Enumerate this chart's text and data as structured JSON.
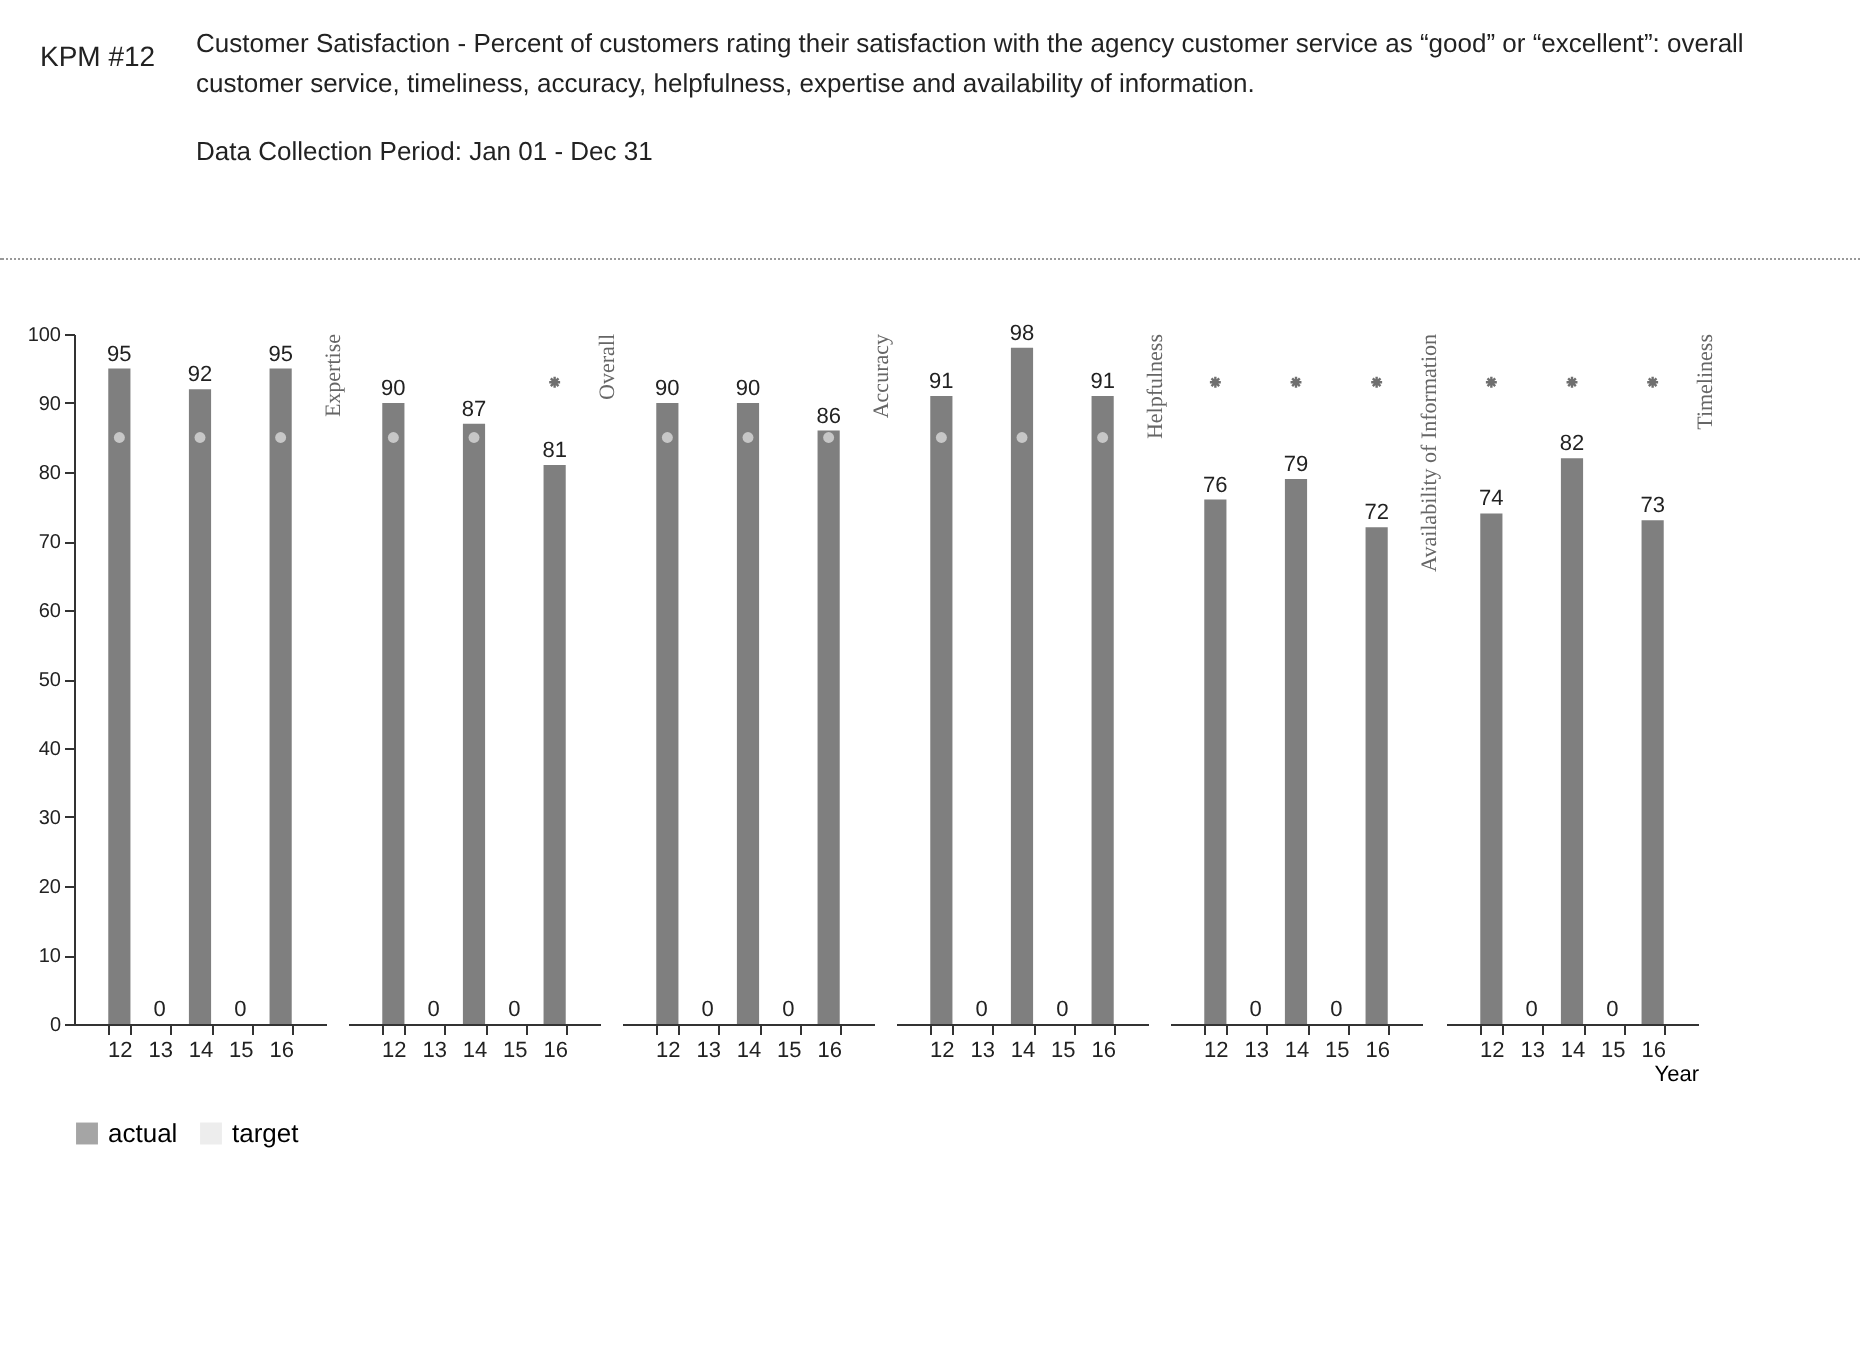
{
  "chart_data": [
    {
      "type": "other",
      "title": "KPM #12",
      "annotations": [
        "Customer Satisfaction - Percent of customers rating their satisfaction with the agency customer service as “good” or “excellent”: overall customer service, timeliness, accuracy, helpfulness, expertise and availability of information.",
        "Data Collection Period: Jan 01 - Dec 31"
      ]
    },
    {
      "type": "bar",
      "title": "Expertise",
      "categories": [
        "12",
        "13",
        "14",
        "15",
        "16"
      ],
      "ylim": [
        0,
        100
      ],
      "yticks": [
        0,
        10,
        20,
        30,
        40,
        50,
        60,
        70,
        80,
        90,
        100
      ],
      "legend": "bottom",
      "series": [
        {
          "name": "actual",
          "color": "#7f7f7f",
          "values": [
            95,
            0,
            92,
            0,
            95
          ],
          "value_labels": [
            "95",
            "0",
            "92",
            "0",
            "95"
          ]
        },
        {
          "name": "target",
          "type": "scatter",
          "marker": "circle",
          "color": "#e6e6e6",
          "values": [
            85,
            null,
            85,
            null,
            85
          ]
        },
        {
          "type": "scatter",
          "marker": "cross",
          "color": "#333333",
          "values": [
            null,
            null,
            null,
            null,
            null
          ]
        }
      ]
    },
    {
      "type": "bar",
      "title": "Overall",
      "categories": [
        "12",
        "13",
        "14",
        "15",
        "16"
      ],
      "ylim": [
        0,
        100
      ],
      "tick_labels": "x",
      "legend": "bottom",
      "series": [
        {
          "name": "actual",
          "color": "#7f7f7f",
          "values": [
            90,
            0,
            87,
            0,
            81
          ],
          "value_labels": [
            "90",
            "0",
            "87",
            "0",
            "81"
          ]
        },
        {
          "name": "target",
          "type": "scatter",
          "marker": "circle",
          "color": "#e6e6e6",
          "values": [
            85,
            null,
            85,
            null,
            null
          ]
        },
        {
          "type": "scatter",
          "marker": "cross",
          "color": "#333333",
          "values": [
            null,
            null,
            null,
            null,
            93
          ]
        }
      ]
    },
    {
      "type": "bar",
      "title": "Accuracy",
      "categories": [
        "12",
        "13",
        "14",
        "15",
        "16"
      ],
      "ylim": [
        0,
        100
      ],
      "tick_labels": "x",
      "legend": "bottom",
      "series": [
        {
          "name": "actual",
          "color": "#7f7f7f",
          "values": [
            90,
            0,
            90,
            0,
            86
          ],
          "value_labels": [
            "90",
            "0",
            "90",
            "0",
            "86"
          ]
        },
        {
          "name": "target",
          "type": "scatter",
          "marker": "circle",
          "color": "#e6e6e6",
          "values": [
            85,
            null,
            85,
            null,
            85
          ]
        },
        {
          "type": "scatter",
          "marker": "cross",
          "color": "#333333",
          "values": [
            null,
            null,
            null,
            null,
            null
          ]
        }
      ]
    },
    {
      "type": "bar",
      "title": "Helpfulness",
      "categories": [
        "12",
        "13",
        "14",
        "15",
        "16"
      ],
      "ylim": [
        0,
        100
      ],
      "tick_labels": "x",
      "legend": "bottom",
      "series": [
        {
          "name": "actual",
          "color": "#7f7f7f",
          "values": [
            91,
            0,
            98,
            0,
            91
          ],
          "value_labels": [
            "91",
            "0",
            "98",
            "0",
            "91"
          ]
        },
        {
          "name": "target",
          "type": "scatter",
          "marker": "circle",
          "color": "#e6e6e6",
          "values": [
            85,
            null,
            85,
            null,
            85
          ]
        },
        {
          "type": "scatter",
          "marker": "cross",
          "color": "#333333",
          "values": [
            null,
            null,
            null,
            null,
            null
          ]
        }
      ]
    },
    {
      "type": "bar",
      "title": "Availability of Information",
      "categories": [
        "12",
        "13",
        "14",
        "15",
        "16"
      ],
      "ylim": [
        0,
        100
      ],
      "tick_labels": "x",
      "legend": "bottom",
      "series": [
        {
          "name": "actual",
          "color": "#7f7f7f",
          "values": [
            76,
            0,
            79,
            0,
            72
          ],
          "value_labels": [
            "76",
            "0",
            "79",
            "0",
            "72"
          ]
        },
        {
          "name": "target",
          "type": "scatter",
          "marker": "circle",
          "color": "#e6e6e6",
          "values": [
            null,
            null,
            null,
            null,
            null
          ]
        },
        {
          "type": "scatter",
          "marker": "cross",
          "color": "#333333",
          "values": [
            93,
            null,
            93,
            null,
            93
          ]
        }
      ]
    },
    {
      "type": "bar",
      "title": "Timeliness",
      "xlabel": "Year",
      "categories": [
        "12",
        "13",
        "14",
        "15",
        "16"
      ],
      "ylim": [
        0,
        100
      ],
      "tick_labels": "x",
      "legend": "bottom",
      "series": [
        {
          "name": "actual",
          "color": "#7f7f7f",
          "values": [
            74,
            0,
            82,
            0,
            73
          ],
          "value_labels": [
            "74",
            "0",
            "82",
            "0",
            "73"
          ]
        },
        {
          "name": "target",
          "type": "scatter",
          "marker": "circle",
          "color": "#e6e6e6",
          "values": [
            null,
            null,
            null,
            null,
            null
          ]
        },
        {
          "type": "scatter",
          "marker": "cross",
          "color": "#333333",
          "values": [
            93,
            null,
            93,
            null,
            93
          ]
        }
      ]
    }
  ]
}
